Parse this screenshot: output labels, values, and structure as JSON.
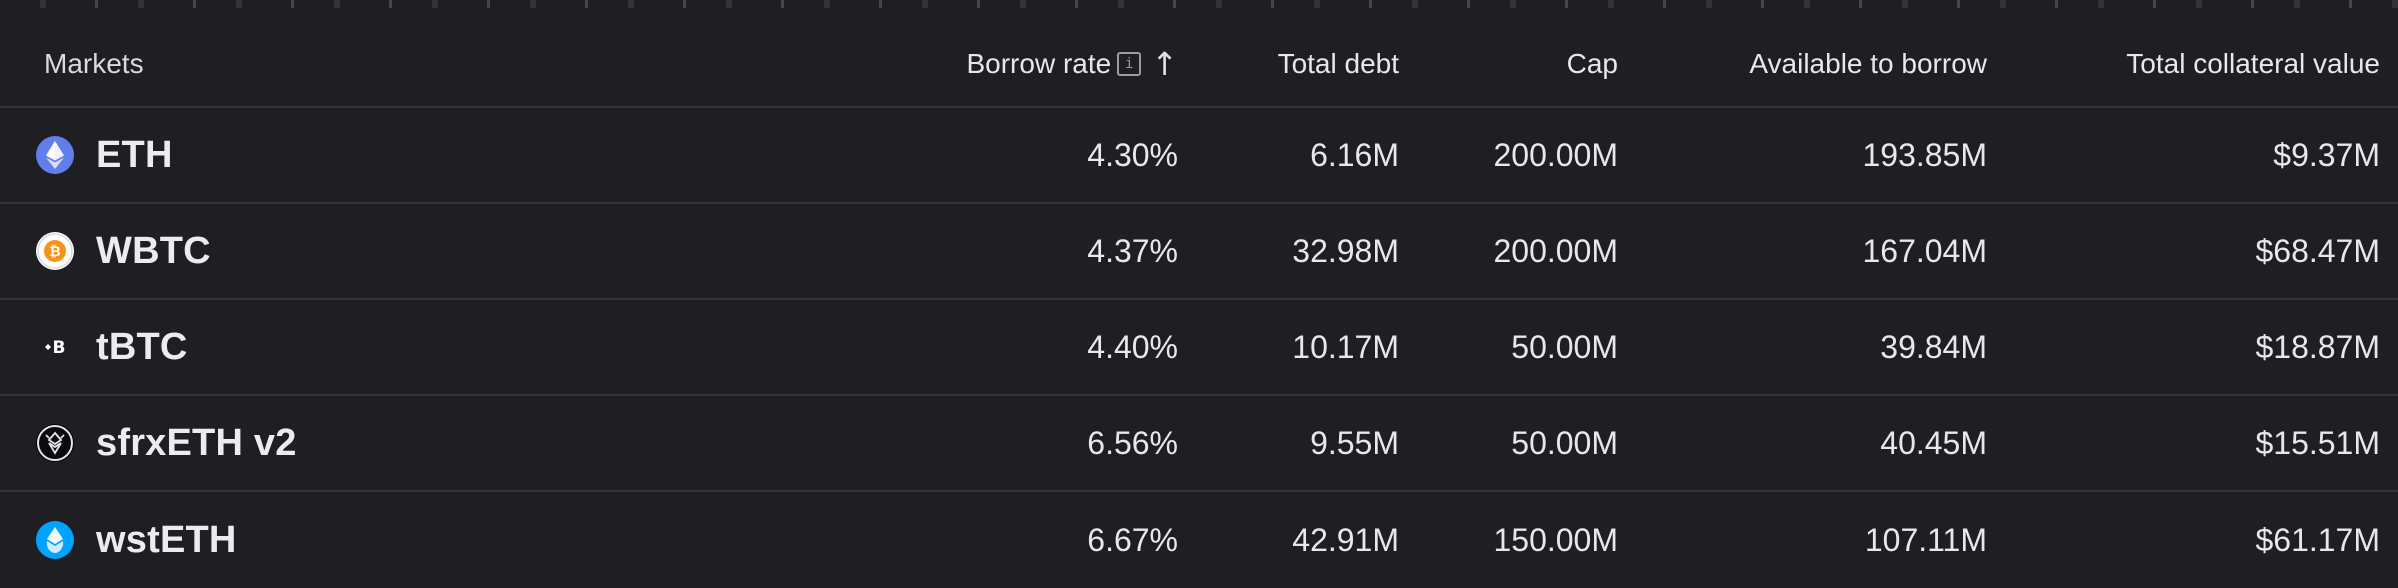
{
  "header": {
    "markets": "Markets",
    "borrow_rate": "Borrow rate",
    "total_debt": "Total debt",
    "cap": "Cap",
    "available_to_borrow": "Available to borrow",
    "total_collateral_value": "Total collateral value",
    "sort_icon": "↑",
    "info_icon": "i"
  },
  "icons": {
    "info": "info-icon",
    "sort": "arrow-up-icon"
  },
  "rows": [
    {
      "market": "ETH",
      "icon": "eth-icon",
      "borrow_rate": "4.30%",
      "total_debt": "6.16M",
      "cap": "200.00M",
      "available": "193.85M",
      "collateral": "$9.37M"
    },
    {
      "market": "WBTC",
      "icon": "wbtc-icon",
      "borrow_rate": "4.37%",
      "total_debt": "32.98M",
      "cap": "200.00M",
      "available": "167.04M",
      "collateral": "$68.47M"
    },
    {
      "market": "tBTC",
      "icon": "tbtc-icon",
      "borrow_rate": "4.40%",
      "total_debt": "10.17M",
      "cap": "50.00M",
      "available": "39.84M",
      "collateral": "$18.87M"
    },
    {
      "market": "sfrxETH v2",
      "icon": "sfrxeth-icon",
      "borrow_rate": "6.56%",
      "total_debt": "9.55M",
      "cap": "50.00M",
      "available": "40.45M",
      "collateral": "$15.51M"
    },
    {
      "market": "wstETH",
      "icon": "wsteth-icon",
      "borrow_rate": "6.67%",
      "total_debt": "42.91M",
      "cap": "150.00M",
      "available": "107.11M",
      "collateral": "$61.17M"
    }
  ],
  "colors": {
    "background": "#1f1f23",
    "divider": "#34343a",
    "eth": "#627eea",
    "wbtc": "#f7931a",
    "wsteth": "#00a3ff"
  }
}
